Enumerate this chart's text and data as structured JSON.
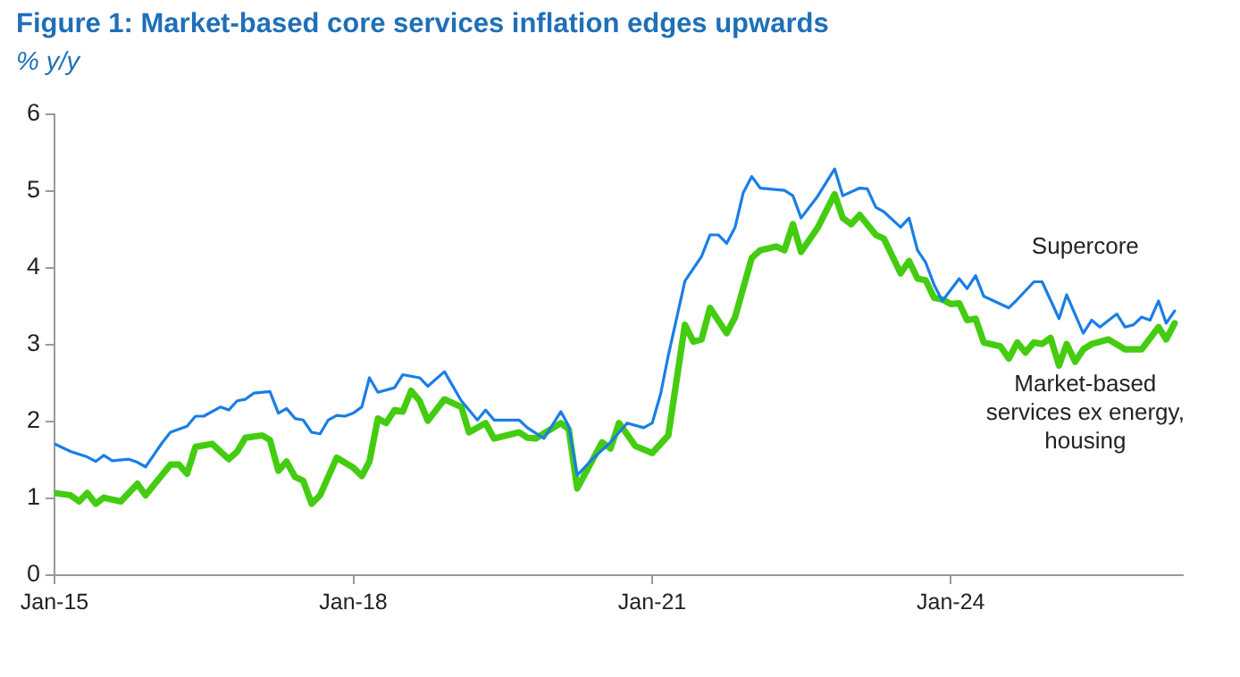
{
  "chart_data": {
    "type": "line",
    "title": "Figure 1: Market-based core services inflation edges upwards",
    "ylabel": "% y/y",
    "xlim": [
      "2015-01",
      "2026-05"
    ],
    "xticks": [
      {
        "value": "2015-01",
        "label": "Jan-15"
      },
      {
        "value": "2018-01",
        "label": "Jan-18"
      },
      {
        "value": "2021-01",
        "label": "Jan-21"
      },
      {
        "value": "2024-01",
        "label": "Jan-24"
      }
    ],
    "ylim": [
      0,
      6
    ],
    "yticks": [
      0,
      1,
      2,
      3,
      4,
      5,
      6
    ],
    "grid": false,
    "legend": false,
    "marker": "none",
    "line_style": "solid",
    "series": [
      {
        "name": "Supercore",
        "color": "#1a7ee6",
        "x": [
          "2015-01",
          "2015-03",
          "2015-05",
          "2015-06",
          "2015-07",
          "2015-08",
          "2015-10",
          "2015-11",
          "2015-12",
          "2016-02",
          "2016-03",
          "2016-05",
          "2016-06",
          "2016-07",
          "2016-09",
          "2016-10",
          "2016-11",
          "2016-12",
          "2017-01",
          "2017-03",
          "2017-04",
          "2017-05",
          "2017-06",
          "2017-07",
          "2017-08",
          "2017-09",
          "2017-10",
          "2017-11",
          "2017-12",
          "2018-01",
          "2018-02",
          "2018-03",
          "2018-04",
          "2018-06",
          "2018-07",
          "2018-09",
          "2018-10",
          "2018-12",
          "2019-02",
          "2019-04",
          "2019-05",
          "2019-06",
          "2019-09",
          "2019-10",
          "2019-12",
          "2020-02",
          "2020-03",
          "2020-04",
          "2020-06",
          "2020-08",
          "2020-10",
          "2020-12",
          "2021-01",
          "2021-02",
          "2021-03",
          "2021-05",
          "2021-07",
          "2021-08",
          "2021-09",
          "2021-10",
          "2021-11",
          "2021-12",
          "2022-01",
          "2022-02",
          "2022-05",
          "2022-06",
          "2022-07",
          "2022-09",
          "2022-11",
          "2022-12",
          "2023-02",
          "2023-03",
          "2023-04",
          "2023-05",
          "2023-07",
          "2023-08",
          "2023-09",
          "2023-10",
          "2023-11",
          "2023-12",
          "2024-02",
          "2024-03",
          "2024-04",
          "2024-05",
          "2024-08",
          "2024-09",
          "2024-11",
          "2024-12",
          "2025-02",
          "2025-03",
          "2025-05",
          "2025-06",
          "2025-07",
          "2025-09",
          "2025-10",
          "2025-11",
          "2025-12",
          "2026-01",
          "2026-02",
          "2026-03",
          "2026-04"
        ],
        "values": [
          1.71,
          1.61,
          1.54,
          1.48,
          1.56,
          1.49,
          1.51,
          1.47,
          1.41,
          1.73,
          1.86,
          1.94,
          2.07,
          2.07,
          2.19,
          2.15,
          2.27,
          2.29,
          2.37,
          2.39,
          2.11,
          2.17,
          2.04,
          2.02,
          1.86,
          1.84,
          2.02,
          2.08,
          2.07,
          2.11,
          2.19,
          2.57,
          2.38,
          2.44,
          2.61,
          2.57,
          2.46,
          2.65,
          2.27,
          2.02,
          2.15,
          2.02,
          2.02,
          1.92,
          1.78,
          2.13,
          1.94,
          1.3,
          1.53,
          1.73,
          1.98,
          1.92,
          1.98,
          2.36,
          2.86,
          3.83,
          4.15,
          4.43,
          4.43,
          4.32,
          4.53,
          4.98,
          5.19,
          5.04,
          5.01,
          4.94,
          4.65,
          4.94,
          5.29,
          4.94,
          5.04,
          5.03,
          4.79,
          4.73,
          4.53,
          4.65,
          4.23,
          4.07,
          3.78,
          3.57,
          3.86,
          3.73,
          3.9,
          3.63,
          3.48,
          3.59,
          3.82,
          3.82,
          3.34,
          3.65,
          3.15,
          3.32,
          3.23,
          3.4,
          3.23,
          3.26,
          3.36,
          3.32,
          3.57,
          3.28,
          3.44
        ]
      },
      {
        "name": "Market-based services ex energy, housing",
        "color": "#44cc11",
        "x": [
          "2015-01",
          "2015-03",
          "2015-04",
          "2015-05",
          "2015-06",
          "2015-07",
          "2015-09",
          "2015-11",
          "2015-12",
          "2016-03",
          "2016-04",
          "2016-05",
          "2016-06",
          "2016-08",
          "2016-10",
          "2016-11",
          "2016-12",
          "2017-02",
          "2017-03",
          "2017-04",
          "2017-05",
          "2017-06",
          "2017-07",
          "2017-08",
          "2017-09",
          "2017-11",
          "2018-01",
          "2018-02",
          "2018-03",
          "2018-04",
          "2018-05",
          "2018-06",
          "2018-07",
          "2018-08",
          "2018-09",
          "2018-10",
          "2018-12",
          "2019-02",
          "2019-03",
          "2019-05",
          "2019-06",
          "2019-09",
          "2019-10",
          "2019-11",
          "2020-02",
          "2020-03",
          "2020-04",
          "2020-07",
          "2020-08",
          "2020-09",
          "2020-11",
          "2021-01",
          "2021-03",
          "2021-05",
          "2021-06",
          "2021-07",
          "2021-08",
          "2021-10",
          "2021-11",
          "2022-01",
          "2022-02",
          "2022-04",
          "2022-05",
          "2022-06",
          "2022-07",
          "2022-09",
          "2022-11",
          "2022-12",
          "2023-01",
          "2023-02",
          "2023-04",
          "2023-05",
          "2023-07",
          "2023-08",
          "2023-09",
          "2023-10",
          "2023-11",
          "2023-12",
          "2024-01",
          "2024-02",
          "2024-03",
          "2024-04",
          "2024-05",
          "2024-07",
          "2024-08",
          "2024-09",
          "2024-10",
          "2024-11",
          "2024-12",
          "2025-01",
          "2025-02",
          "2025-03",
          "2025-04",
          "2025-05",
          "2025-06",
          "2025-08",
          "2025-10",
          "2025-12",
          "2026-02",
          "2026-03",
          "2026-04"
        ],
        "values": [
          1.07,
          1.04,
          0.96,
          1.07,
          0.93,
          1.01,
          0.96,
          1.19,
          1.04,
          1.44,
          1.44,
          1.32,
          1.67,
          1.71,
          1.51,
          1.61,
          1.79,
          1.82,
          1.76,
          1.36,
          1.48,
          1.28,
          1.23,
          0.93,
          1.04,
          1.53,
          1.4,
          1.29,
          1.48,
          2.04,
          1.98,
          2.15,
          2.13,
          2.4,
          2.27,
          2.01,
          2.29,
          2.19,
          1.86,
          1.98,
          1.78,
          1.86,
          1.79,
          1.78,
          1.98,
          1.9,
          1.13,
          1.73,
          1.65,
          1.98,
          1.68,
          1.59,
          1.82,
          3.26,
          3.04,
          3.07,
          3.48,
          3.15,
          3.36,
          4.13,
          4.23,
          4.28,
          4.23,
          4.57,
          4.21,
          4.53,
          4.96,
          4.65,
          4.57,
          4.69,
          4.43,
          4.38,
          3.93,
          4.09,
          3.86,
          3.84,
          3.61,
          3.59,
          3.53,
          3.54,
          3.32,
          3.34,
          3.03,
          2.98,
          2.82,
          3.03,
          2.9,
          3.03,
          3.01,
          3.09,
          2.73,
          3.01,
          2.78,
          2.94,
          3.01,
          3.07,
          2.94,
          2.94,
          3.23,
          3.07,
          3.28
        ]
      }
    ]
  }
}
